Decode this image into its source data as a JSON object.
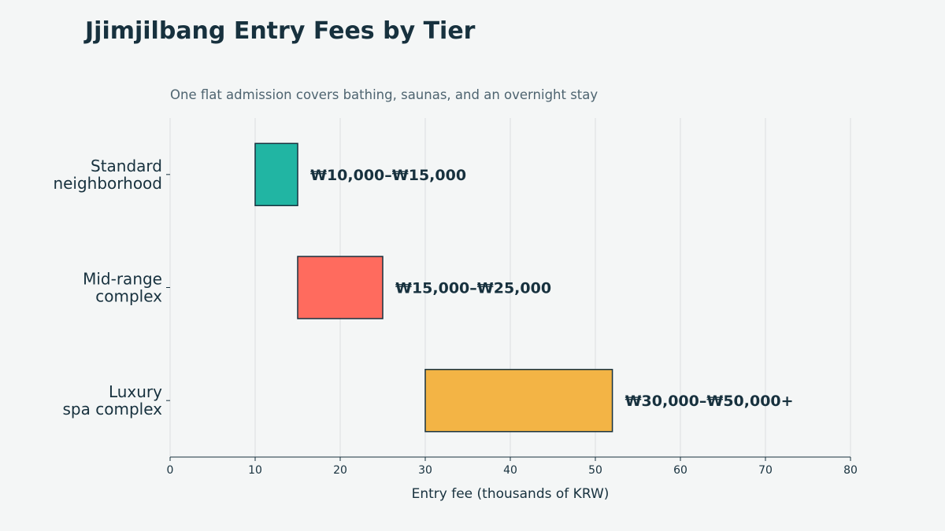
{
  "chart_data": {
    "type": "bar",
    "orientation": "horizontal",
    "title": "Jjimjilbang Entry Fees by Tier",
    "subtitle": "One flat admission covers bathing, saunas, and an overnight stay",
    "xlabel": "Entry fee (thousands of KRW)",
    "ylabel": "",
    "xlim": [
      0,
      80
    ],
    "xticks": [
      0,
      10,
      20,
      30,
      40,
      50,
      60,
      70,
      80
    ],
    "grid": "vertical",
    "categories": [
      [
        "Standard",
        "neighborhood"
      ],
      [
        "Mid-range",
        "complex"
      ],
      [
        "Luxury",
        "spa complex"
      ]
    ],
    "ranges": [
      [
        10,
        15
      ],
      [
        15,
        25
      ],
      [
        30,
        52
      ]
    ],
    "labels": [
      "₩10,000–₩15,000",
      "₩15,000–₩25,000",
      "₩30,000–₩50,000+"
    ],
    "colors": [
      "#21b5a3",
      "#ff6b5e",
      "#f3b445"
    ],
    "edge_color": "#17313e"
  }
}
